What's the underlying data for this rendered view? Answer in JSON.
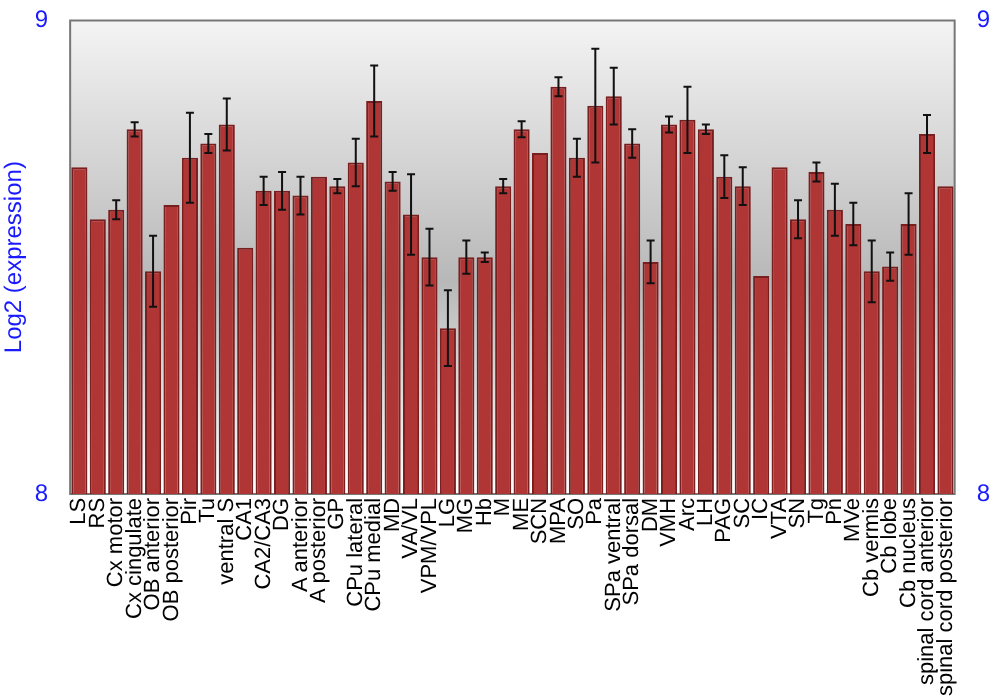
{
  "chart_data": {
    "type": "bar",
    "ylabel": "Log2 (expression)",
    "categories": [
      "LS",
      "RS",
      "Cx motor",
      "Cx cingulate",
      "OB anterior",
      "OB posterior",
      "Pir",
      "Tu",
      "ventral S",
      "CA1",
      "CA2/CA3",
      "DG",
      "A anterior",
      "A posterior",
      "GP",
      "CPu lateral",
      "CPu medial",
      "MD",
      "VA/VL",
      "VPM/VPL",
      "LG",
      "MG",
      "Hb",
      "M",
      "ME",
      "SCN",
      "MPA",
      "SO",
      "Pa",
      "SPa ventral",
      "SPa dorsal",
      "DM",
      "VMH",
      "Arc",
      "LH",
      "PAG",
      "SC",
      "IC",
      "VTA",
      "SN",
      "Tg",
      "Pn",
      "MVe",
      "Cb vermis",
      "Cb lobe",
      "Cb nucleus",
      "spinal cord anterior",
      "spinal cord posterior"
    ],
    "values": [
      8.69,
      8.58,
      8.6,
      8.77,
      8.47,
      8.61,
      8.71,
      8.74,
      8.78,
      8.52,
      8.64,
      8.64,
      8.63,
      8.67,
      8.65,
      8.7,
      8.83,
      8.66,
      8.59,
      8.5,
      8.35,
      8.5,
      8.5,
      8.65,
      8.77,
      8.72,
      8.86,
      8.71,
      8.82,
      8.84,
      8.74,
      8.49,
      8.78,
      8.79,
      8.77,
      8.67,
      8.65,
      8.46,
      8.69,
      8.58,
      8.68,
      8.6,
      8.57,
      8.47,
      8.48,
      8.57,
      8.76,
      8.65
    ],
    "errors": [
      null,
      null,
      0.02,
      0.015,
      0.075,
      null,
      0.095,
      0.02,
      0.055,
      null,
      0.03,
      0.04,
      0.04,
      null,
      0.015,
      0.05,
      0.075,
      0.02,
      0.085,
      0.06,
      0.08,
      0.035,
      0.01,
      0.015,
      0.017,
      null,
      0.02,
      0.04,
      0.12,
      0.06,
      0.03,
      0.045,
      0.017,
      0.07,
      0.01,
      0.045,
      0.04,
      null,
      null,
      0.04,
      0.02,
      0.055,
      0.045,
      0.065,
      0.03,
      0.065,
      0.04,
      null
    ],
    "color": "#b03535",
    "ylim": [
      8,
      9
    ],
    "yticks": [
      8,
      9
    ],
    "y2lim": [
      8,
      9
    ],
    "y2ticks": [
      8,
      9
    ],
    "grid": false,
    "legend": false
  }
}
